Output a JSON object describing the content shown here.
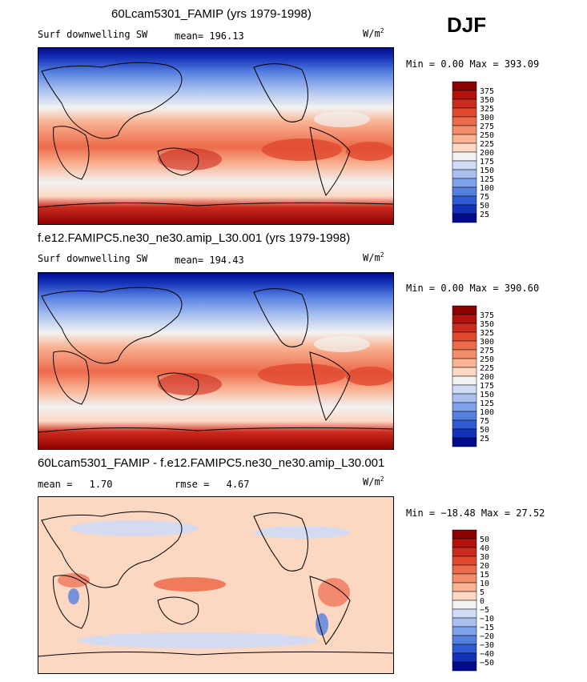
{
  "season": "DJF",
  "panels": [
    {
      "title": "60Lcam5301_FAMIP (yrs 1979-1998)",
      "variable": "Surf downwelling SW",
      "stat1_label": "mean=",
      "stat1_value": "196.13",
      "stat2_label": "",
      "stat2_value": "",
      "units_base": "W/m",
      "units_exp": "2",
      "minmax": "Min =   0.00 Max = 393.09"
    },
    {
      "title": "f.e12.FAMIPC5.ne30_ne30.amip_L30.001 (yrs 1979-1998)",
      "variable": "Surf downwelling SW",
      "stat1_label": "mean=",
      "stat1_value": "194.43",
      "stat2_label": "",
      "stat2_value": "",
      "units_base": "W/m",
      "units_exp": "2",
      "minmax": "Min =   0.00 Max = 390.60"
    },
    {
      "title": "60Lcam5301_FAMIP - f.e12.FAMIPC5.ne30_ne30.amip_L30.001",
      "variable": "",
      "stat1_label": "mean =",
      "stat1_value": "1.70",
      "stat2_label": "rmse =",
      "stat2_value": "4.67",
      "units_base": "W/m",
      "units_exp": "2",
      "minmax": "Min = −18.48 Max =  27.52"
    }
  ],
  "chart_data": [
    {
      "type": "heatmap",
      "title": "60Lcam5301_FAMIP (yrs 1979-1998)",
      "variable": "Surf downwelling SW",
      "units": "W/m2",
      "mean": 196.13,
      "min": 0.0,
      "max": 393.09,
      "colorbar_levels": [
        375,
        350,
        325,
        300,
        275,
        250,
        225,
        200,
        175,
        150,
        125,
        100,
        75,
        50,
        25
      ],
      "colorbar_colors": [
        "#8b0000",
        "#b2120c",
        "#cc2a1e",
        "#e0482f",
        "#ec6a4a",
        "#f48d6b",
        "#f9b393",
        "#fcd7c2",
        "#f2f2f2",
        "#cfdcf5",
        "#a8c0f0",
        "#7fa0ea",
        "#5580e0",
        "#2f5ad4",
        "#1432b8",
        "#000a8c"
      ]
    },
    {
      "type": "heatmap",
      "title": "f.e12.FAMIPC5.ne30_ne30.amip_L30.001 (yrs 1979-1998)",
      "variable": "Surf downwelling SW",
      "units": "W/m2",
      "mean": 194.43,
      "min": 0.0,
      "max": 390.6,
      "colorbar_levels": [
        375,
        350,
        325,
        300,
        275,
        250,
        225,
        200,
        175,
        150,
        125,
        100,
        75,
        50,
        25
      ],
      "colorbar_colors": [
        "#8b0000",
        "#b2120c",
        "#cc2a1e",
        "#e0482f",
        "#ec6a4a",
        "#f48d6b",
        "#f9b393",
        "#fcd7c2",
        "#f2f2f2",
        "#cfdcf5",
        "#a8c0f0",
        "#7fa0ea",
        "#5580e0",
        "#2f5ad4",
        "#1432b8",
        "#000a8c"
      ]
    },
    {
      "type": "heatmap",
      "title": "60Lcam5301_FAMIP - f.e12.FAMIPC5.ne30_ne30.amip_L30.001",
      "units": "W/m2",
      "mean": 1.7,
      "rmse": 4.67,
      "min": -18.48,
      "max": 27.52,
      "colorbar_levels": [
        50,
        40,
        30,
        20,
        15,
        10,
        5,
        0,
        -5,
        -10,
        -15,
        -20,
        -30,
        -40,
        -50
      ],
      "colorbar_colors": [
        "#8b0000",
        "#b2120c",
        "#cc2a1e",
        "#e0482f",
        "#ec6a4a",
        "#f48d6b",
        "#f9b393",
        "#fcd7c2",
        "#f2f2f2",
        "#cfdcf5",
        "#a8c0f0",
        "#7fa0ea",
        "#5580e0",
        "#2f5ad4",
        "#1432b8",
        "#000a8c"
      ]
    }
  ]
}
